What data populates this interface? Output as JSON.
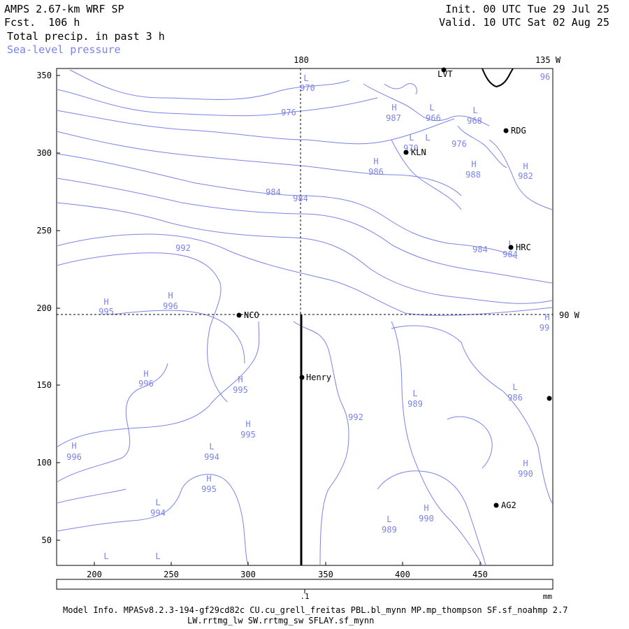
{
  "header": {
    "model": "AMPS 2.67-km WRF SP",
    "fcst": "Fcst.  106 h",
    "field1": "Total precip. in past 3 h",
    "field2": "Sea-level pressure",
    "init": "Init. 00 UTC Tue 29 Jul 25",
    "valid": "Valid. 10 UTC Sat 02 Aug 25"
  },
  "colors": {
    "contour": "#7b83e8",
    "frame": "#000000"
  },
  "axes": {
    "y_ticks": [
      "50",
      "100",
      "150",
      "200",
      "250",
      "300",
      "350"
    ],
    "x_ticks": [
      "200",
      "250",
      "300",
      "350",
      "400",
      "450"
    ],
    "lon_labels": {
      "top_180": "180",
      "top_135w": "135 W",
      "right_90w": "90 W"
    }
  },
  "stations": [
    {
      "name": "LVT"
    },
    {
      "name": "RDG"
    },
    {
      "name": "KLN"
    },
    {
      "name": "HRC"
    },
    {
      "name": "NCO"
    },
    {
      "name": "Henry"
    },
    {
      "name": "AG2"
    },
    {
      "name": ""
    }
  ],
  "pressure_labels": [
    "976",
    "970",
    "987",
    "966",
    "968",
    "970",
    "976",
    "986",
    "988",
    "982",
    "984",
    "984",
    "984",
    "984",
    "992",
    "995",
    "996",
    "996",
    "995",
    "995",
    "994",
    "995",
    "996",
    "994",
    "992",
    "989",
    "986",
    "990",
    "990",
    "989",
    "96",
    "99"
  ],
  "hl_marks": [
    "L",
    "L",
    "H",
    "L",
    "L",
    "L",
    "H",
    "H",
    "H",
    "H",
    "L",
    "H",
    "H",
    "H",
    "H",
    "H",
    "L",
    "H",
    "H",
    "L",
    "L",
    "L",
    "H",
    "H",
    "L",
    "L",
    "L"
  ],
  "colorbar": {
    "tick": ".1",
    "unit": "mm"
  },
  "footer": {
    "line1": "Model Info. MPASv8.2.3-194-gf29cd82c CU.cu_grell_freitas PBL.bl_mynn MP.mp_thompson SF.sf_noahmp 2.7",
    "line2": "LW.rrtmg_lw SW.rrtmg_sw SFLAY.sf_mynn"
  }
}
